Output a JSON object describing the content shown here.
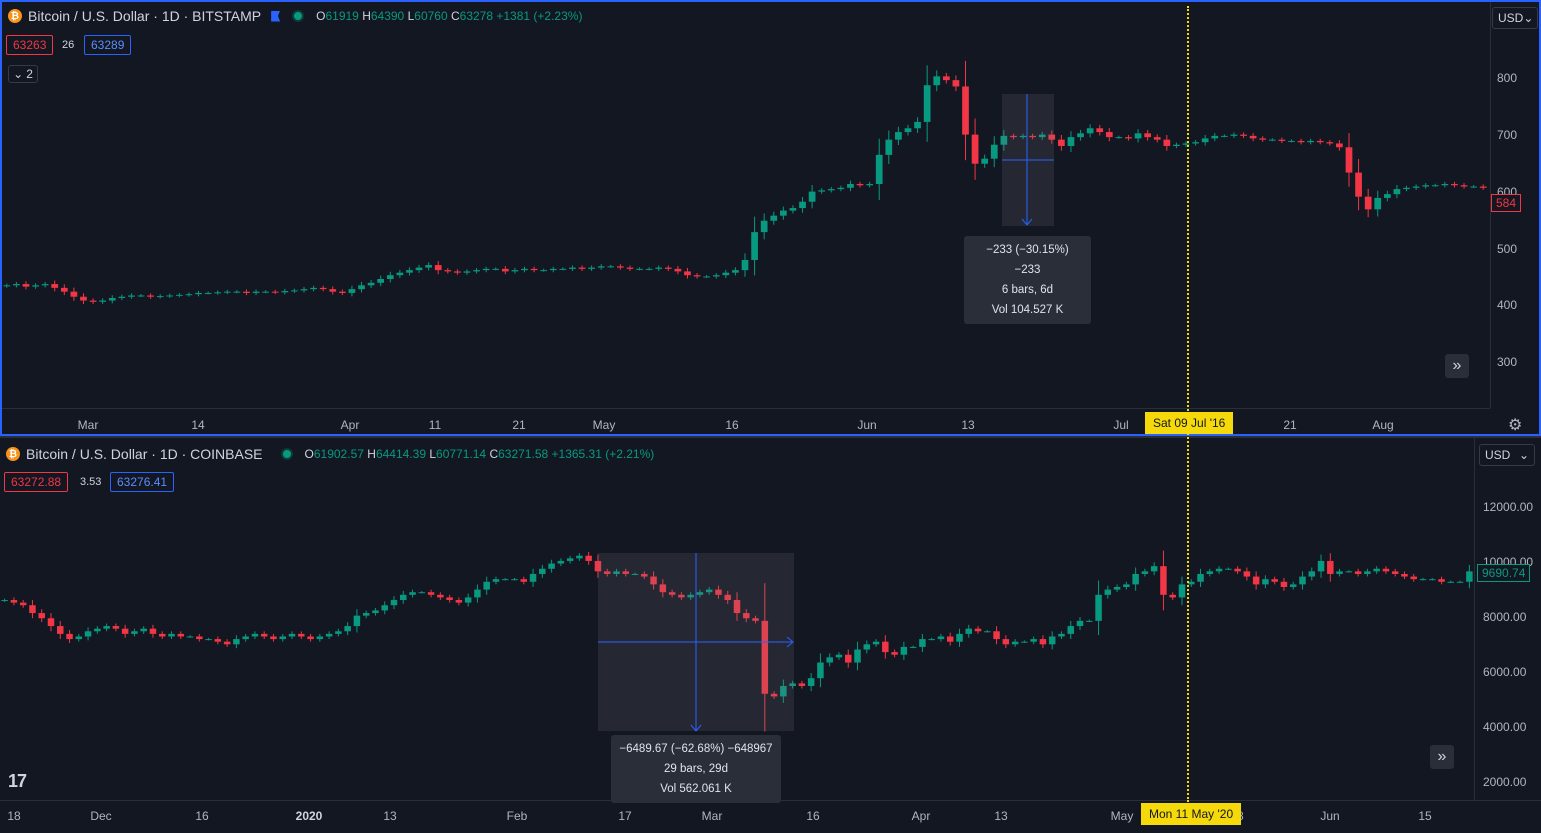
{
  "top": {
    "symbol_title": "Bitcoin / U.S. Dollar · 1D · BITSTAMP",
    "coin_glyph": "₿",
    "ohlc": {
      "o_label": "O",
      "o": "61919",
      "h_label": "H",
      "h": "64390",
      "l_label": "L",
      "l": "60760",
      "c_label": "C",
      "c": "63278",
      "change": "+1381 (+2.23%)"
    },
    "sell_price": "63263",
    "spread": "26",
    "buy_price": "63289",
    "collapse_label": "2",
    "currency": "USD",
    "y_ticks": [
      "800",
      "700",
      "600",
      "500",
      "400",
      "300"
    ],
    "last_price": "584",
    "x_ticks": [
      {
        "label": "Mar",
        "bold": false
      },
      {
        "label": "14",
        "bold": false
      },
      {
        "label": "Apr",
        "bold": false
      },
      {
        "label": "11",
        "bold": false
      },
      {
        "label": "21",
        "bold": false
      },
      {
        "label": "May",
        "bold": false
      },
      {
        "label": "16",
        "bold": false
      },
      {
        "label": "Jun",
        "bold": false
      },
      {
        "label": "13",
        "bold": false
      },
      {
        "label": "Jul",
        "bold": false
      },
      {
        "label": "21",
        "bold": false
      },
      {
        "label": "Aug",
        "bold": false
      }
    ],
    "crosshair_date": "Sat 09 Jul '16",
    "measure": {
      "line1": "−233 (−30.15%) −233",
      "line2": "6 bars, 6d",
      "line3": "Vol 104.527 K"
    },
    "colors": {
      "up": "#089981",
      "down": "#f23645"
    }
  },
  "bottom": {
    "symbol_title": "Bitcoin / U.S. Dollar · 1D · COINBASE",
    "coin_glyph": "₿",
    "ohlc": {
      "o_label": "O",
      "o": "61902.57",
      "h_label": "H",
      "h": "64414.39",
      "l_label": "L",
      "l": "60771.14",
      "c_label": "C",
      "c": "63271.58",
      "change": "+1365.31 (+2.21%)"
    },
    "sell_price": "63272.88",
    "spread": "3.53",
    "buy_price": "63276.41",
    "currency": "USD",
    "y_ticks": [
      "12000.00",
      "10000.00",
      "8000.00",
      "6000.00",
      "4000.00",
      "2000.00"
    ],
    "last_price": "9690.74",
    "x_ticks": [
      {
        "label": "18",
        "bold": false
      },
      {
        "label": "Dec",
        "bold": false
      },
      {
        "label": "16",
        "bold": false
      },
      {
        "label": "2020",
        "bold": true
      },
      {
        "label": "13",
        "bold": false
      },
      {
        "label": "Feb",
        "bold": false
      },
      {
        "label": "17",
        "bold": false
      },
      {
        "label": "Mar",
        "bold": false
      },
      {
        "label": "16",
        "bold": false
      },
      {
        "label": "Apr",
        "bold": false
      },
      {
        "label": "13",
        "bold": false
      },
      {
        "label": "May",
        "bold": false
      },
      {
        "label": "18",
        "bold": false
      },
      {
        "label": "Jun",
        "bold": false
      },
      {
        "label": "15",
        "bold": false
      }
    ],
    "crosshair_date": "Mon 11 May '20",
    "measure": {
      "line1": "−6489.67 (−62.68%) −648967",
      "line2": "29 bars, 29d",
      "line3": "Vol 562.061 K"
    },
    "logo_text": "17"
  },
  "chart_data": [
    {
      "type": "candlestick",
      "title": "Bitcoin / U.S. Dollar · 1D · BITSTAMP",
      "ylim": [
        230,
        830
      ],
      "x_range": [
        "2016-02-15",
        "2016-08-28"
      ],
      "closes": [
        430,
        432,
        428,
        430,
        432,
        426,
        420,
        412,
        406,
        404,
        406,
        410,
        412,
        414,
        414,
        412,
        413,
        414,
        415,
        416,
        418,
        418,
        419,
        420,
        420,
        418,
        420,
        420,
        419,
        421,
        422,
        424,
        426,
        424,
        420,
        418,
        424,
        430,
        434,
        440,
        446,
        450,
        454,
        458,
        462,
        454,
        452,
        450,
        452,
        454,
        456,
        456,
        452,
        454,
        456,
        454,
        454,
        456,
        456,
        458,
        456,
        458,
        460,
        460,
        458,
        456,
        456,
        456,
        458,
        456,
        452,
        446,
        444,
        444,
        446,
        450,
        454,
        470,
        514,
        532,
        540,
        548,
        552,
        562,
        578,
        580,
        582,
        584,
        590,
        588,
        590,
        636,
        660,
        672,
        678,
        688,
        746,
        760,
        754,
        744,
        668,
        622,
        630,
        652,
        666,
        664,
        666,
        664,
        668,
        660,
        650,
        664,
        670,
        678,
        672,
        664,
        664,
        662,
        670,
        664,
        660,
        650,
        652,
        654,
        656,
        662,
        666,
        666,
        668,
        666,
        662,
        660,
        660,
        658,
        658,
        656,
        658,
        656,
        654,
        648,
        608,
        570,
        550,
        568,
        574,
        582,
        584,
        586,
        588,
        588,
        590,
        588,
        586,
        586,
        584
      ],
      "colors": {
        "up": "#089981",
        "down": "#f23645"
      }
    },
    {
      "type": "candlestick",
      "title": "Bitcoin / U.S. Dollar · 1D · COINBASE",
      "ylim": [
        1000,
        12900
      ],
      "x_range": [
        "2019-11-11",
        "2020-06-21"
      ],
      "closes": [
        8600,
        8500,
        8400,
        8100,
        7900,
        7600,
        7300,
        7100,
        7200,
        7400,
        7500,
        7600,
        7500,
        7300,
        7400,
        7500,
        7300,
        7200,
        7300,
        7200,
        7200,
        7100,
        7100,
        7000,
        6900,
        7100,
        7200,
        7300,
        7200,
        7100,
        7200,
        7300,
        7200,
        7100,
        7200,
        7300,
        7400,
        7600,
        8000,
        8100,
        8200,
        8400,
        8600,
        8800,
        8900,
        8900,
        8800,
        8700,
        8600,
        8500,
        8700,
        9000,
        9300,
        9400,
        9400,
        9400,
        9300,
        9600,
        9800,
        10000,
        10100,
        10200,
        10300,
        10100,
        9700,
        9600,
        9700,
        9600,
        9600,
        9500,
        9200,
        8900,
        8800,
        8700,
        8800,
        8900,
        9000,
        8800,
        8600,
        8100,
        7900,
        7800,
        5000,
        4900,
        5300,
        5400,
        5300,
        5600,
        6200,
        6400,
        6500,
        6200,
        6700,
        6900,
        7000,
        6600,
        6500,
        6800,
        6800,
        7100,
        7100,
        7200,
        7000,
        7300,
        7500,
        7400,
        7400,
        7100,
        6900,
        7000,
        7000,
        7100,
        6900,
        7200,
        7300,
        7600,
        7800,
        7800,
        8800,
        9000,
        9100,
        9200,
        9600,
        9700,
        9900,
        8800,
        8700,
        9200,
        9300,
        9600,
        9700,
        9800,
        9800,
        9700,
        9500,
        9200,
        9400,
        9300,
        9100,
        9200,
        9500,
        9700,
        10100,
        9600,
        9700,
        9700,
        9600,
        9700,
        9800,
        9700,
        9600,
        9500,
        9400,
        9400,
        9400,
        9300,
        9300,
        9300,
        9700
      ],
      "colors": {
        "up": "#089981",
        "down": "#f23645"
      }
    }
  ]
}
